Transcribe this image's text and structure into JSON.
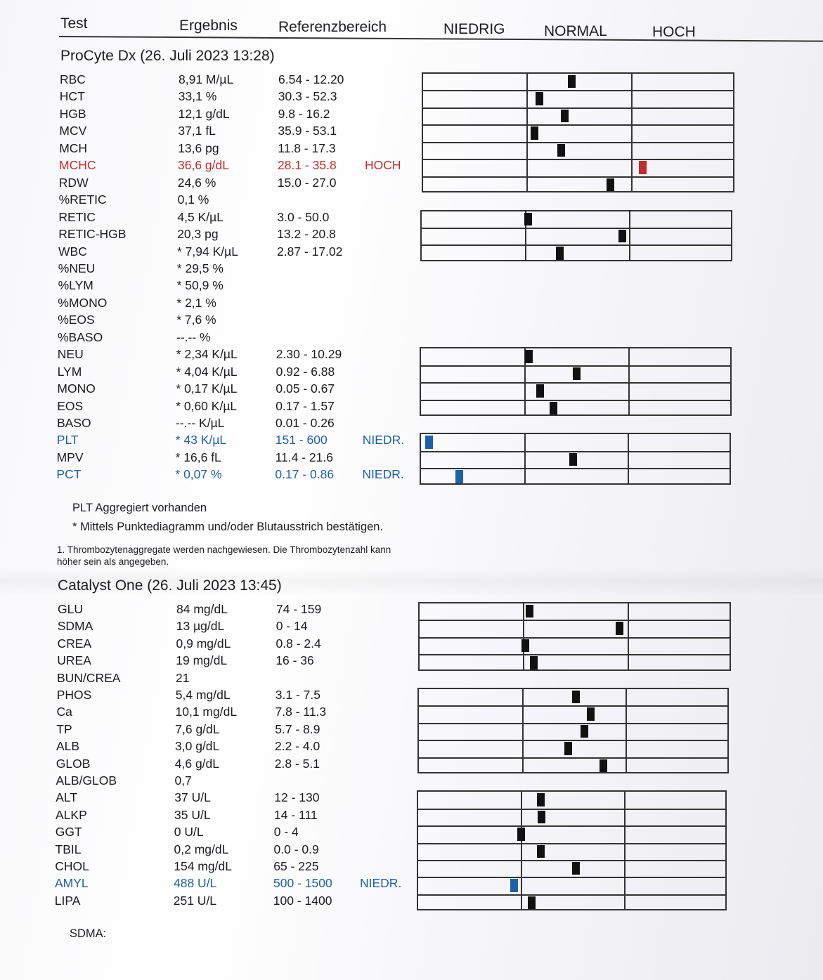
{
  "header": {
    "test": "Test",
    "result": "Ergebnis",
    "reference": "Referenzbereich",
    "low": "NIEDRIG",
    "normal": "NORMAL",
    "high": "HOCH"
  },
  "colors": {
    "high": "#c42c2c",
    "low": "#2060a8",
    "normal_marker": "#111111"
  },
  "procyte": {
    "title": "ProCyte Dx (26. Juli 2023 13:28)",
    "rows": [
      {
        "test": "RBC",
        "result": "8,91 M/µL",
        "range": "6.54 - 12.20",
        "flag": "",
        "status": "",
        "level": 0.43
      },
      {
        "test": "HCT",
        "result": "33,1 %",
        "range": "30.3 - 52.3",
        "flag": "",
        "status": "",
        "level": 0.12
      },
      {
        "test": "HGB",
        "result": "12,1 g/dL",
        "range": "9.8 - 16.2",
        "flag": "",
        "status": "",
        "level": 0.36
      },
      {
        "test": "MCV",
        "result": "37,1 fL",
        "range": "35.9 - 53.1",
        "flag": "",
        "status": "",
        "level": 0.07
      },
      {
        "test": "MCH",
        "result": "13,6 pg",
        "range": "11.8 - 17.3",
        "flag": "",
        "status": "",
        "level": 0.33
      },
      {
        "test": "MCHC",
        "result": "36,6 g/dL",
        "range": "28.1 - 35.8",
        "flag": "HOCH",
        "status": "high",
        "level": 0.11
      },
      {
        "test": "RDW",
        "result": "24,6 %",
        "range": "15.0 - 27.0",
        "flag": "",
        "status": "",
        "level": 0.8
      },
      {
        "test": "%RETIC",
        "result": "0,1 %",
        "range": "",
        "flag": "",
        "status": "",
        "level": null
      },
      {
        "test": "RETIC",
        "result": "4,5 K/µL",
        "range": "3.0 - 50.0",
        "flag": "",
        "status": "",
        "level": 0.03
      },
      {
        "test": "RETIC-HGB",
        "result": "20,3 pg",
        "range": "13.2 - 20.8",
        "flag": "",
        "status": "",
        "level": 0.93
      },
      {
        "test": "WBC",
        "result": "* 7,94 K/µL",
        "range": "2.87 - 17.02",
        "flag": "",
        "status": "",
        "level": 0.33
      },
      {
        "test": "%NEU",
        "result": "* 29,5 %",
        "range": "",
        "flag": "",
        "status": "",
        "level": null
      },
      {
        "test": "%LYM",
        "result": "* 50,9 %",
        "range": "",
        "flag": "",
        "status": "",
        "level": null
      },
      {
        "test": "%MONO",
        "result": "* 2,1 %",
        "range": "",
        "flag": "",
        "status": "",
        "level": null
      },
      {
        "test": "%EOS",
        "result": "* 7,6 %",
        "range": "",
        "flag": "",
        "status": "",
        "level": null
      },
      {
        "test": "%BASO",
        "result": "--.-- %",
        "range": "",
        "flag": "",
        "status": "",
        "level": null
      },
      {
        "test": "NEU",
        "result": "* 2,34 K/µL",
        "range": "2.30 - 10.29",
        "flag": "",
        "status": "",
        "level": 0.04
      },
      {
        "test": "LYM",
        "result": "* 4,04 K/µL",
        "range": "0.92 - 6.88",
        "flag": "",
        "status": "",
        "level": 0.5
      },
      {
        "test": "MONO",
        "result": "* 0,17 K/µL",
        "range": "0.05 - 0.67",
        "flag": "",
        "status": "",
        "level": 0.15
      },
      {
        "test": "EOS",
        "result": "* 0,60 K/µL",
        "range": "0.17 - 1.57",
        "flag": "",
        "status": "",
        "level": 0.28
      },
      {
        "test": "BASO",
        "result": "--.-- K/µL",
        "range": "0.01 - 0.26",
        "flag": "",
        "status": "",
        "level": null
      },
      {
        "test": "PLT",
        "result": "* 43 K/µL",
        "range": "151 - 600",
        "flag": "NIEDR.",
        "status": "low",
        "level": 0.08
      },
      {
        "test": "MPV",
        "result": "* 16,6 fL",
        "range": "11.4 - 21.6",
        "flag": "",
        "status": "",
        "level": 0.47
      },
      {
        "test": "PCT",
        "result": "* 0,07 %",
        "range": "0.17 - 0.86",
        "flag": "NIEDR.",
        "status": "low",
        "level": 0.37
      }
    ],
    "notes": [
      "PLT Aggregiert vorhanden",
      "* Mittels Punktediagramm und/oder Blutausstrich bestätigen."
    ],
    "footnote": [
      "1. Thrombozytenaggregate werden nachgewiesen. Die Thrombozytenzahl kann",
      "höher sein als angegeben."
    ]
  },
  "catalyst": {
    "title": "Catalyst One (26. Juli 2023 13:45)",
    "rows": [
      {
        "test": "GLU",
        "result": "84 mg/dL",
        "range": "74 - 159",
        "flag": "",
        "status": "",
        "level": 0.06
      },
      {
        "test": "SDMA",
        "result": "13 µg/dL",
        "range": "0 - 14",
        "flag": "",
        "status": "",
        "level": 0.92
      },
      {
        "test": "CREA",
        "result": "0,9 mg/dL",
        "range": "0.8 - 2.4",
        "flag": "",
        "status": "",
        "level": 0.02
      },
      {
        "test": "UREA",
        "result": "19 mg/dL",
        "range": "16 - 36",
        "flag": "",
        "status": "",
        "level": 0.1
      },
      {
        "test": "BUN/CREA",
        "result": "21",
        "range": "",
        "flag": "",
        "status": "",
        "level": null
      },
      {
        "test": "PHOS",
        "result": "5,4 mg/dL",
        "range": "3.1 - 7.5",
        "flag": "",
        "status": "",
        "level": 0.52
      },
      {
        "test": "Ca",
        "result": "10,1 mg/dL",
        "range": "7.8 - 11.3",
        "flag": "",
        "status": "",
        "level": 0.66
      },
      {
        "test": "TP",
        "result": "7,6 g/dL",
        "range": "5.7 - 8.9",
        "flag": "",
        "status": "",
        "level": 0.6
      },
      {
        "test": "ALB",
        "result": "3,0 g/dL",
        "range": "2.2 - 4.0",
        "flag": "",
        "status": "",
        "level": 0.44
      },
      {
        "test": "GLOB",
        "result": "4,6 g/dL",
        "range": "2.8 - 5.1",
        "flag": "",
        "status": "",
        "level": 0.78
      },
      {
        "test": "ALB/GLOB",
        "result": "0,7",
        "range": "",
        "flag": "",
        "status": "",
        "level": null
      },
      {
        "test": "ALT",
        "result": "37 U/L",
        "range": "12 - 130",
        "flag": "",
        "status": "",
        "level": 0.19
      },
      {
        "test": "ALKP",
        "result": "35 U/L",
        "range": "14 - 111",
        "flag": "",
        "status": "",
        "level": 0.2
      },
      {
        "test": "GGT",
        "result": "0 U/L",
        "range": "0 - 4",
        "flag": "",
        "status": "",
        "level": 0.0
      },
      {
        "test": "TBIL",
        "result": "0,2 mg/dL",
        "range": "0.0 - 0.9",
        "flag": "",
        "status": "",
        "level": 0.19
      },
      {
        "test": "CHOL",
        "result": "154 mg/dL",
        "range": "65 - 225",
        "flag": "",
        "status": "",
        "level": 0.53
      },
      {
        "test": "AMYL",
        "result": "488 U/L",
        "range": "500 - 1500",
        "flag": "NIEDR.",
        "status": "low",
        "level": 0.93
      },
      {
        "test": "LIPA",
        "result": "251 U/L",
        "range": "100 - 1400",
        "flag": "",
        "status": "",
        "level": 0.1
      }
    ],
    "notes": [
      "SDMA:"
    ]
  }
}
